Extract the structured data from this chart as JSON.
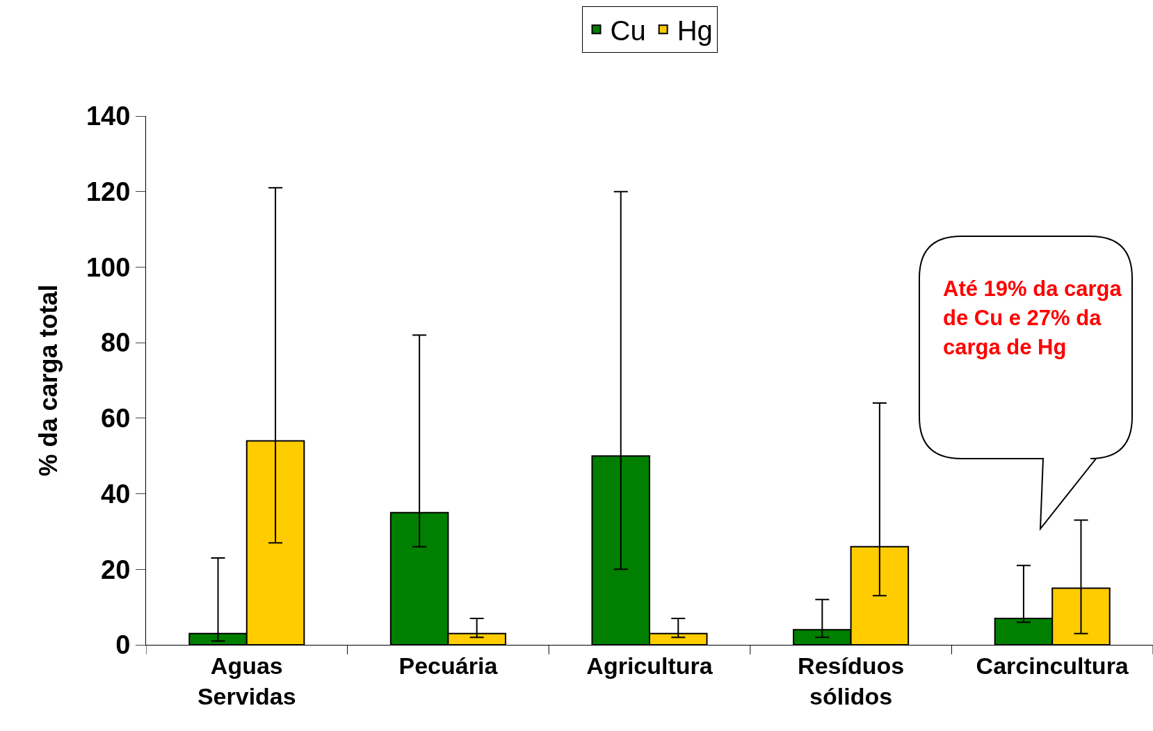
{
  "chart_data": {
    "type": "bar",
    "ylabel": "% da carga total",
    "categories": [
      "Aguas Servidas",
      "Pecuária",
      "Agricultura",
      "Resíduos sólidos",
      "Carcincultura"
    ],
    "series": [
      {
        "name": "Cu",
        "color": "#007f00",
        "values": [
          3,
          35,
          50,
          4,
          7
        ],
        "errors": [
          [
            1,
            23
          ],
          [
            26,
            82
          ],
          [
            20,
            120
          ],
          [
            2,
            12
          ],
          [
            6,
            21
          ]
        ]
      },
      {
        "name": "Hg",
        "color": "#ffcc00",
        "values": [
          54,
          3,
          3,
          26,
          15
        ],
        "errors": [
          [
            27,
            121
          ],
          [
            2,
            7
          ],
          [
            2,
            7
          ],
          [
            13,
            64
          ],
          [
            3,
            33
          ]
        ]
      }
    ],
    "ylim": [
      0,
      140
    ],
    "yticks": [
      0,
      20,
      40,
      60,
      80,
      100,
      120,
      140
    ],
    "grid": false,
    "legend": "top",
    "annotations": [
      "Até 19% da carga de Cu e 27% da carga de Hg"
    ]
  }
}
